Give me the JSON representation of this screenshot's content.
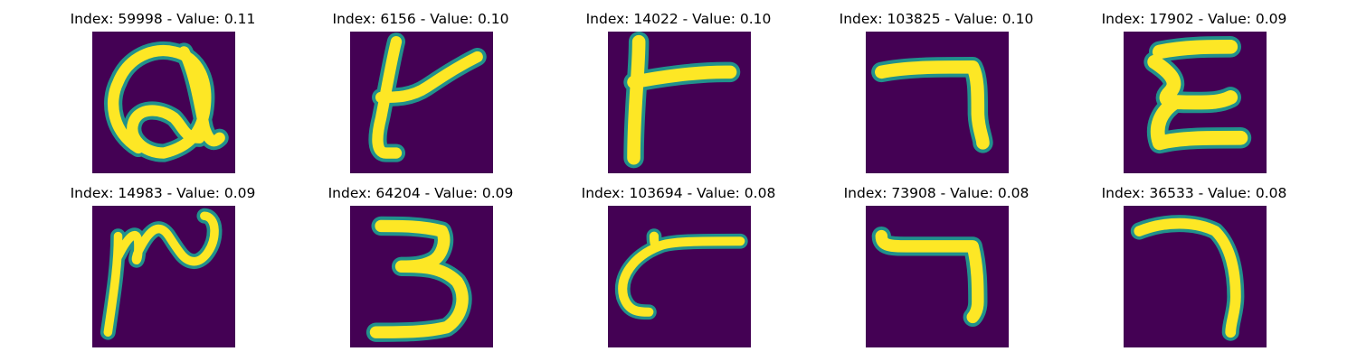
{
  "figure": {
    "colors": {
      "background": "#440154",
      "stroke": "#fde725",
      "edge": "#21918c"
    },
    "items": [
      {
        "title": "Index: 59998 - Value: 0.11",
        "glyph": "looped-a"
      },
      {
        "title": "Index: 6156 - Value: 0.10",
        "glyph": "stem-with-branch"
      },
      {
        "title": "Index: 14022 - Value: 0.10",
        "glyph": "stem-with-bar"
      },
      {
        "title": "Index: 103825 - Value: 0.10",
        "glyph": "seven-like"
      },
      {
        "title": "Index: 17902 - Value: 0.09",
        "glyph": "stacked-e"
      },
      {
        "title": "Index: 14983 - Value: 0.09",
        "glyph": "wavy-stroke"
      },
      {
        "title": "Index: 64204 - Value: 0.09",
        "glyph": "three"
      },
      {
        "title": "Index: 103694 - Value: 0.08",
        "glyph": "curved-hook"
      },
      {
        "title": "Index: 73908 - Value: 0.08",
        "glyph": "seven-like-2"
      },
      {
        "title": "Index: 36533 - Value: 0.08",
        "glyph": "arc-seven"
      }
    ]
  }
}
